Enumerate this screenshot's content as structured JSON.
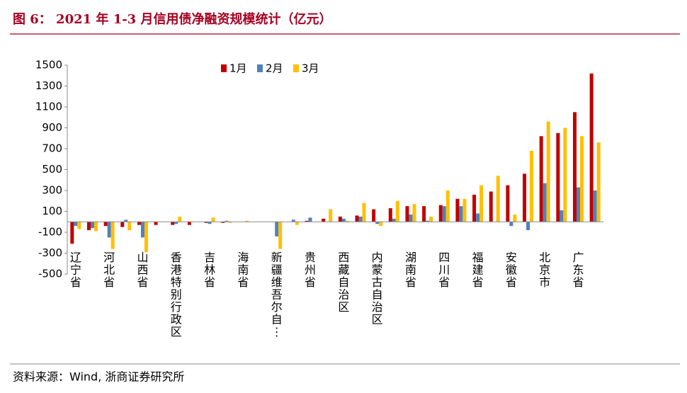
{
  "chart_data": {
    "type": "bar",
    "title": "图 6： 2021 年 1-3 月信用债净融资规模统计（亿元）",
    "source": "资料来源：Wind, 浙商证券研究所",
    "categories": [
      "辽宁省",
      null,
      "河北省",
      null,
      "山西省",
      null,
      "香港特别行政区",
      null,
      "吉林省",
      null,
      "海南省",
      null,
      "新疆维吾尔自⋮",
      null,
      "贵州省",
      null,
      "西藏自治区",
      null,
      "内蒙古自治区",
      null,
      "湖南省",
      null,
      "四川省",
      null,
      "福建省",
      null,
      "安徽省",
      null,
      "北京市",
      null,
      "广东省",
      null
    ],
    "series": [
      {
        "name": "1月",
        "color": "#c00000",
        "values": [
          -210,
          -80,
          -40,
          -50,
          -30,
          -30,
          -30,
          -30,
          -10,
          -10,
          0,
          0,
          0,
          0,
          10,
          30,
          50,
          60,
          120,
          130,
          150,
          150,
          160,
          220,
          260,
          290,
          350,
          460,
          820,
          850,
          1050,
          1420
        ]
      },
      {
        "name": "2月",
        "color": "#4f81bd",
        "values": [
          -40,
          -60,
          -150,
          20,
          -150,
          0,
          -20,
          0,
          -20,
          10,
          0,
          0,
          -140,
          20,
          40,
          0,
          30,
          50,
          -20,
          30,
          70,
          10,
          150,
          150,
          80,
          0,
          -40,
          -80,
          370,
          110,
          330,
          300
        ]
      },
      {
        "name": "3月",
        "color": "#ffc000",
        "values": [
          -70,
          -90,
          -260,
          -80,
          -290,
          0,
          50,
          0,
          40,
          -10,
          10,
          0,
          -260,
          -30,
          0,
          120,
          10,
          180,
          -40,
          200,
          170,
          50,
          300,
          220,
          350,
          440,
          70,
          680,
          960,
          900,
          820,
          760
        ]
      }
    ],
    "ylim": [
      -500,
      1500
    ],
    "yticks": [
      -500,
      -300,
      -100,
      100,
      300,
      500,
      700,
      900,
      1100,
      1300,
      1500
    ],
    "grid": false,
    "legend": "top"
  }
}
